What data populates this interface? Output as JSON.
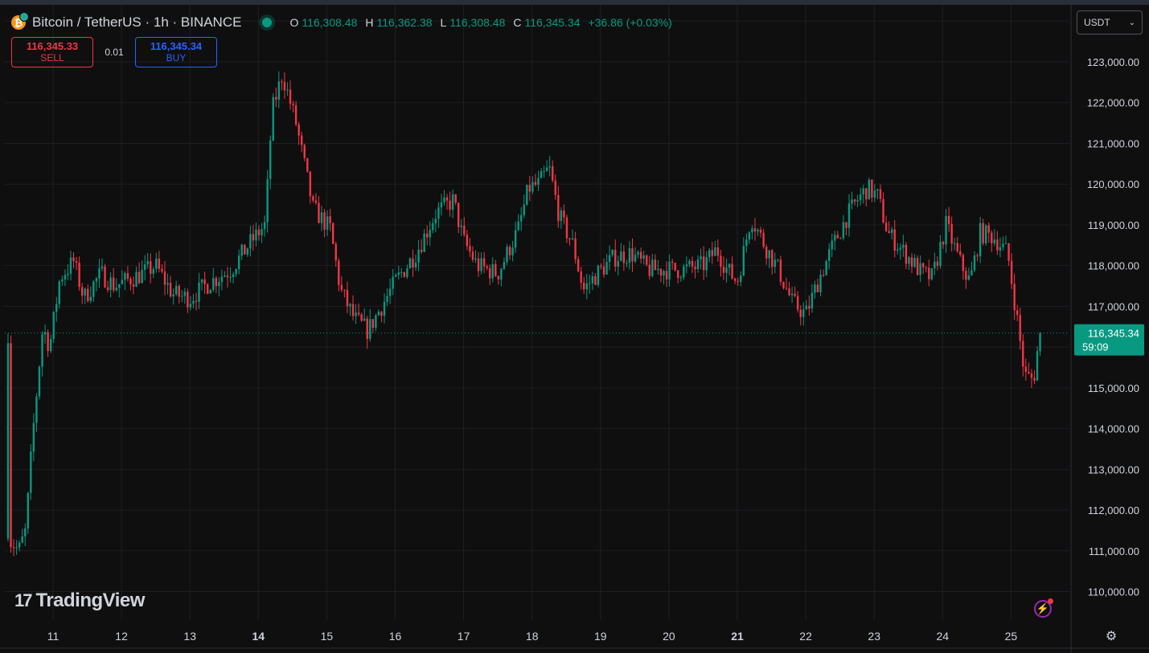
{
  "header": {
    "symbol": "Bitcoin / TetherUS · 1h · BINANCE",
    "coin_icon": "bitcoin-icon",
    "ohlc": [
      {
        "k": "O",
        "v": "116,308.48"
      },
      {
        "k": "H",
        "v": "116,362.38"
      },
      {
        "k": "L",
        "v": "116,308.48"
      },
      {
        "k": "C",
        "v": "116,345.34"
      }
    ],
    "change": "+36.86 (+0.03%)"
  },
  "trade": {
    "sell_price": "116,345.33",
    "sell_label": "SELL",
    "spread": "0.01",
    "buy_price": "116,345.34",
    "buy_label": "BUY"
  },
  "currency": {
    "label": "USDT"
  },
  "logo": {
    "text": "TradingView"
  },
  "colors": {
    "up": "#089981",
    "down": "#f23645",
    "grid": "#1e1f24",
    "accent": "#2962ff"
  },
  "chart_data": {
    "type": "candlestick",
    "interval": "1h",
    "ylim": [
      109300,
      124400
    ],
    "yticks": [
      "110,000.00",
      "111,000.00",
      "112,000.00",
      "113,000.00",
      "114,000.00",
      "115,000.00",
      "117,000.00",
      "118,000.00",
      "119,000.00",
      "120,000.00",
      "121,000.00",
      "122,000.00",
      "123,000.00"
    ],
    "ytick_values": [
      110000,
      111000,
      112000,
      113000,
      114000,
      115000,
      117000,
      118000,
      119000,
      120000,
      121000,
      122000,
      123000
    ],
    "xticks": [
      {
        "label": "11",
        "day": 11,
        "bold": false
      },
      {
        "label": "12",
        "day": 12,
        "bold": false
      },
      {
        "label": "13",
        "day": 13,
        "bold": false
      },
      {
        "label": "14",
        "day": 14,
        "bold": true
      },
      {
        "label": "15",
        "day": 15,
        "bold": false
      },
      {
        "label": "16",
        "day": 16,
        "bold": false
      },
      {
        "label": "17",
        "day": 17,
        "bold": false
      },
      {
        "label": "18",
        "day": 18,
        "bold": false
      },
      {
        "label": "19",
        "day": 19,
        "bold": false
      },
      {
        "label": "20",
        "day": 20,
        "bold": false
      },
      {
        "label": "21",
        "day": 21,
        "bold": true
      },
      {
        "label": "22",
        "day": 22,
        "bold": false
      },
      {
        "label": "23",
        "day": 23,
        "bold": false
      },
      {
        "label": "24",
        "day": 24,
        "bold": false
      },
      {
        "label": "25",
        "day": 25,
        "bold": false
      }
    ],
    "x_start_day": 10.3,
    "x_end_day": 25.45,
    "last_price": 116345.34,
    "last_price_label": "116,345.34",
    "countdown": "59:09",
    "price_path": [
      [
        10.35,
        111300
      ],
      [
        10.5,
        111000
      ],
      [
        10.6,
        111500
      ],
      [
        10.7,
        113800
      ],
      [
        10.85,
        116500
      ],
      [
        10.95,
        116000
      ],
      [
        11.1,
        117700
      ],
      [
        11.3,
        118100
      ],
      [
        11.45,
        117200
      ],
      [
        11.7,
        117800
      ],
      [
        11.9,
        117500
      ],
      [
        12.3,
        117800
      ],
      [
        12.5,
        118000
      ],
      [
        12.75,
        117300
      ],
      [
        13.0,
        117200
      ],
      [
        13.3,
        117600
      ],
      [
        13.6,
        117900
      ],
      [
        13.9,
        118600
      ],
      [
        14.1,
        119000
      ],
      [
        14.2,
        121800
      ],
      [
        14.35,
        122700
      ],
      [
        14.55,
        121500
      ],
      [
        14.8,
        119400
      ],
      [
        15.05,
        118900
      ],
      [
        15.2,
        117400
      ],
      [
        15.4,
        116700
      ],
      [
        15.6,
        116400
      ],
      [
        15.8,
        117000
      ],
      [
        16.0,
        117600
      ],
      [
        16.3,
        118300
      ],
      [
        16.6,
        119300
      ],
      [
        16.85,
        119600
      ],
      [
        17.0,
        118600
      ],
      [
        17.2,
        118000
      ],
      [
        17.5,
        117800
      ],
      [
        17.8,
        118900
      ],
      [
        17.95,
        119900
      ],
      [
        18.1,
        120000
      ],
      [
        18.25,
        120400
      ],
      [
        18.4,
        119200
      ],
      [
        18.6,
        118500
      ],
      [
        18.75,
        117400
      ],
      [
        18.95,
        117800
      ],
      [
        19.2,
        118200
      ],
      [
        19.45,
        118300
      ],
      [
        19.7,
        117900
      ],
      [
        19.9,
        117900
      ],
      [
        20.2,
        117900
      ],
      [
        20.5,
        118000
      ],
      [
        20.7,
        118400
      ],
      [
        20.85,
        117900
      ],
      [
        21.0,
        117600
      ],
      [
        21.2,
        119200
      ],
      [
        21.4,
        118500
      ],
      [
        21.6,
        117900
      ],
      [
        21.8,
        117100
      ],
      [
        22.0,
        116800
      ],
      [
        22.2,
        117700
      ],
      [
        22.4,
        118500
      ],
      [
        22.6,
        119200
      ],
      [
        22.75,
        119600
      ],
      [
        22.9,
        119900
      ],
      [
        23.05,
        119700
      ],
      [
        23.2,
        118800
      ],
      [
        23.45,
        118300
      ],
      [
        23.7,
        117800
      ],
      [
        23.85,
        117700
      ],
      [
        24.05,
        119000
      ],
      [
        24.25,
        118100
      ],
      [
        24.4,
        117600
      ],
      [
        24.55,
        118800
      ],
      [
        24.75,
        118700
      ],
      [
        24.95,
        118300
      ],
      [
        25.08,
        116800
      ],
      [
        25.2,
        115300
      ],
      [
        25.33,
        115200
      ],
      [
        25.4,
        116100
      ],
      [
        25.45,
        116345
      ]
    ]
  }
}
